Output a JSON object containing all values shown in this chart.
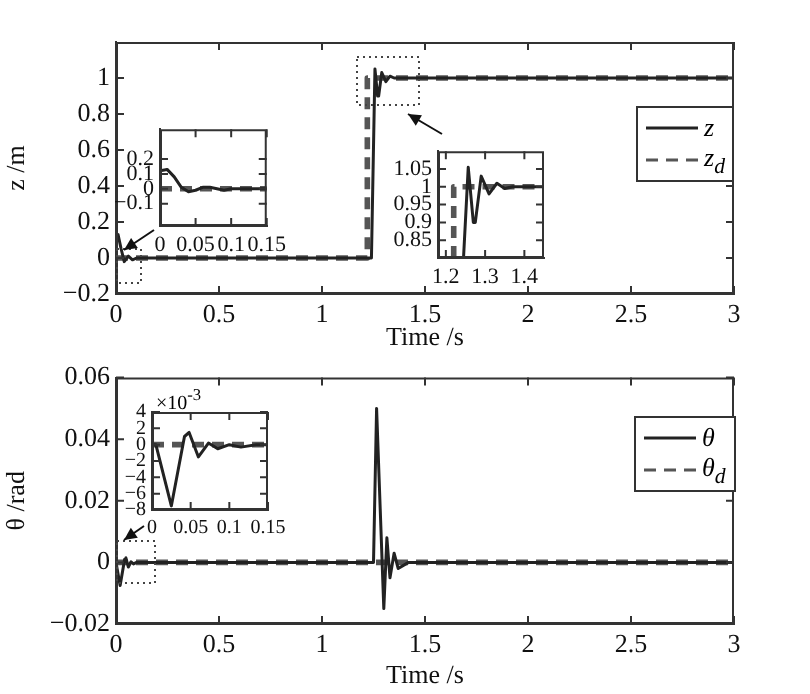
{
  "chart_data": [
    {
      "type": "line",
      "xlabel": "Time /s",
      "ylabel": "z /m",
      "xlim": [
        0,
        3
      ],
      "ylim": [
        -0.2,
        1.2
      ],
      "xticks": [
        0,
        0.5,
        1,
        1.5,
        2,
        2.5,
        3
      ],
      "yticks": [
        {
          "value": -0.2,
          "label": "−0.2"
        },
        0,
        0.2,
        0.4,
        0.6,
        0.8,
        1
      ],
      "grid": false,
      "legend": "right",
      "marker": "none",
      "series": [
        {
          "name": "z",
          "color": "#222222",
          "line_style": "solid",
          "x": [
            0,
            0.01,
            0.025,
            0.04,
            0.06,
            0.08,
            0.1,
            1.24,
            1.257,
            1.27,
            1.275,
            1.29,
            1.31,
            1.33,
            1.35,
            1.37,
            3
          ],
          "values": [
            0.12,
            0.13,
            0.05,
            -0.02,
            0.01,
            -0.01,
            0,
            0,
            1.05,
            0.9,
            0.9,
            1.03,
            0.98,
            1.01,
            1,
            1,
            1
          ]
        },
        {
          "name": "z$_{d}$",
          "color": "#555555",
          "line_style": "dashed",
          "x": [
            0,
            1.22,
            1.22,
            3
          ],
          "values": [
            0,
            0,
            1,
            1
          ]
        }
      ]
    },
    {
      "type": "line",
      "xlim": [
        0,
        0.15
      ],
      "ylim": [
        -0.25,
        0.4
      ],
      "xticks": [
        0,
        0.05,
        0.1,
        0.15
      ],
      "yticks": [
        {
          "value": -0.1,
          "label": "−0.1"
        },
        0,
        0.1,
        0.2
      ],
      "grid": false,
      "legend": false,
      "marker": "none",
      "series": [
        {
          "color": "#222222",
          "line_style": "solid",
          "x": [
            0,
            0.01,
            0.02,
            0.03,
            0.04,
            0.05,
            0.06,
            0.07,
            0.08,
            0.09,
            0.1,
            0.12,
            0.15
          ],
          "values": [
            0.12,
            0.13,
            0.08,
            0.01,
            -0.02,
            -0.01,
            0.01,
            0.01,
            0,
            -0.01,
            0,
            0,
            0
          ]
        },
        {
          "color": "#555555",
          "line_style": "dashed",
          "x": [
            0,
            0.15
          ],
          "values": [
            0,
            0
          ]
        }
      ]
    },
    {
      "type": "line",
      "xlim": [
        1.18,
        1.45
      ],
      "ylim": [
        0.8,
        1.1
      ],
      "xticks": [
        1.2,
        1.3,
        1.4
      ],
      "yticks": [
        0.85,
        0.9,
        0.95,
        1,
        1.05
      ],
      "grid": false,
      "legend": false,
      "marker": "none",
      "series": [
        {
          "color": "#222222",
          "line_style": "solid",
          "x": [
            1.245,
            1.257,
            1.27,
            1.275,
            1.29,
            1.31,
            1.33,
            1.35,
            1.37,
            1.45
          ],
          "values": [
            0.8,
            1.055,
            0.9,
            0.9,
            1.03,
            0.98,
            1.01,
            0.995,
            1,
            1
          ]
        },
        {
          "color": "#555555",
          "line_style": "dashed",
          "x": [
            1.22,
            1.22,
            1.45
          ],
          "values": [
            0.8,
            1,
            1
          ]
        }
      ]
    },
    {
      "type": "line",
      "xlabel": "Time /s",
      "ylabel": "θ /rad",
      "xlim": [
        0,
        3
      ],
      "ylim": [
        -0.02,
        0.06
      ],
      "xticks": [
        0,
        0.5,
        1,
        1.5,
        2,
        2.5,
        3
      ],
      "yticks": [
        {
          "value": -0.02,
          "label": "−0.02"
        },
        0,
        0.02,
        0.04,
        0.06
      ],
      "grid": false,
      "legend": "right",
      "marker": "none",
      "series": [
        {
          "name": "θ",
          "color": "#222222",
          "line_style": "solid",
          "x": [
            0,
            0.02,
            0.042,
            0.048,
            0.06,
            0.073,
            0.085,
            0.1,
            1.25,
            1.265,
            1.3,
            1.315,
            1.33,
            1.35,
            1.37,
            1.42,
            3
          ],
          "values": [
            0,
            -0.0075,
            0.001,
            0.0015,
            -0.0015,
            0.0002,
            -0.0005,
            0,
            0,
            0.05,
            -0.015,
            0.008,
            -0.005,
            0.003,
            -0.002,
            0,
            0
          ]
        },
        {
          "name": "θ$_{d}$",
          "color": "#555555",
          "line_style": "dashed",
          "x": [
            0,
            3
          ],
          "values": [
            0,
            0
          ]
        }
      ]
    },
    {
      "type": "line",
      "annotations": [
        "×10$^{-3}$"
      ],
      "xlim": [
        0,
        0.15
      ],
      "ylim": [
        -8,
        4
      ],
      "xticks": [
        0,
        0.05,
        0.1,
        0.15
      ],
      "yticks": [
        {
          "value": -8,
          "label": "−8"
        },
        {
          "value": -6,
          "label": "−6"
        },
        {
          "value": -4,
          "label": "−4"
        },
        {
          "value": -2,
          "label": "−2"
        },
        0,
        2,
        4
      ],
      "grid": false,
      "legend": false,
      "marker": "none",
      "series": [
        {
          "color": "#222222",
          "line_style": "solid",
          "x": [
            0,
            0.005,
            0.025,
            0.042,
            0.048,
            0.06,
            0.073,
            0.085,
            0.1,
            0.115,
            0.135,
            0.15
          ],
          "values": [
            0,
            0,
            -7.5,
            1,
            1.5,
            -1.5,
            0.2,
            -0.5,
            0,
            -0.3,
            0,
            0
          ]
        },
        {
          "color": "#555555",
          "line_style": "dashed",
          "x": [
            0,
            0.15
          ],
          "values": [
            0,
            0
          ]
        }
      ]
    }
  ]
}
